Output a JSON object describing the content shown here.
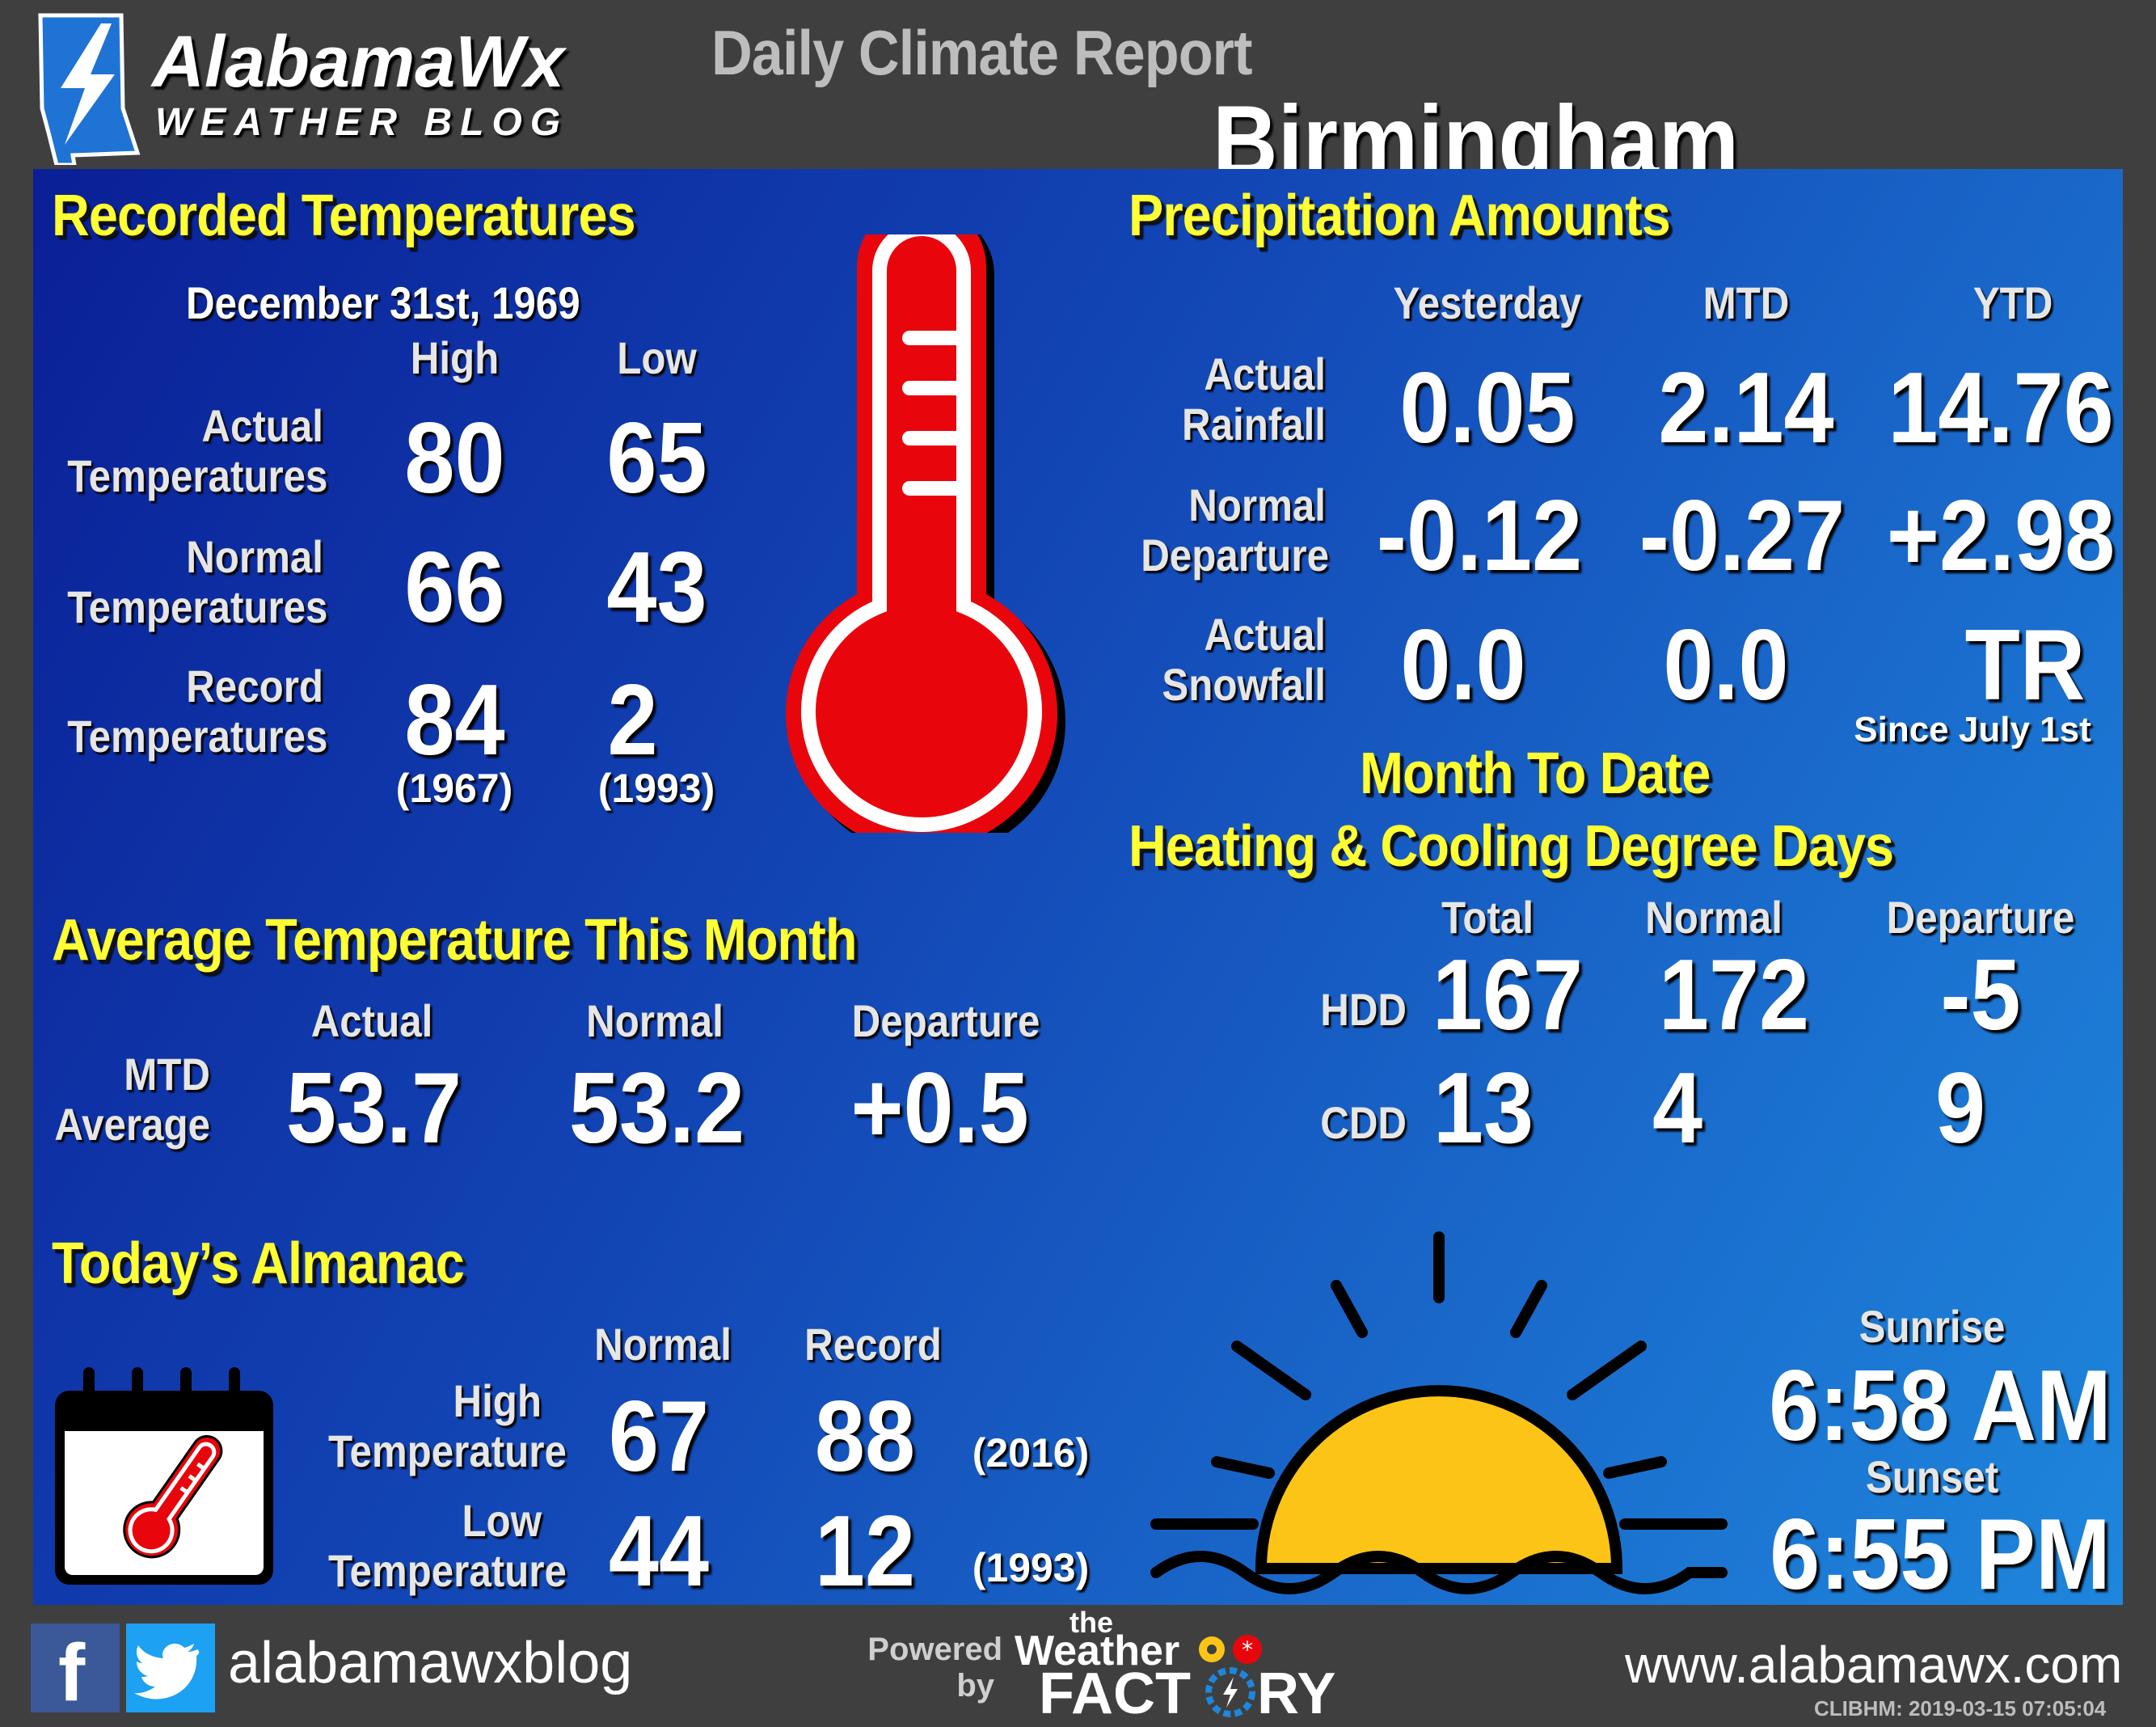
{
  "brand": {
    "name": "AlabamaWx",
    "tagline": "WEATHER BLOG"
  },
  "header": {
    "report_title": "Daily Climate Report",
    "city": "Birmingham"
  },
  "temps": {
    "heading": "Recorded Temperatures",
    "date": "December  31st, 1969",
    "col_high": "High",
    "col_low": "Low",
    "rows": [
      {
        "label1": "Actual",
        "label2": "Temperatures",
        "high": "80",
        "low": "65"
      },
      {
        "label1": "Normal",
        "label2": "Temperatures",
        "high": "66",
        "low": "43"
      },
      {
        "label1": "Record",
        "label2": "Temperatures",
        "high": "84",
        "low": "2"
      }
    ],
    "record_high_year": "(1967)",
    "record_low_year": "(1993)"
  },
  "avg": {
    "heading": "Average Temperature This Month",
    "col_actual": "Actual",
    "col_normal": "Normal",
    "col_departure": "Departure",
    "row_label1": "MTD",
    "row_label2": "Average",
    "actual": "53.7",
    "normal": "53.2",
    "departure": "+0.5"
  },
  "almanac": {
    "heading": "Today’s Almanac",
    "col_normal": "Normal",
    "col_record": "Record",
    "high_label1": "High",
    "high_label2": "Temperature",
    "low_label1": "Low",
    "low_label2": "Temperature",
    "high_normal": "67",
    "high_record": "88",
    "high_record_year": "(2016)",
    "low_normal": "44",
    "low_record": "12",
    "low_record_year": "(1993)"
  },
  "precip": {
    "heading": "Precipitation Amounts",
    "col_yesterday": "Yesterday",
    "col_mtd": "MTD",
    "col_ytd": "YTD",
    "rows": [
      {
        "label1": "Actual",
        "label2": "Rainfall",
        "yesterday": "0.05",
        "mtd": "2.14",
        "ytd": "14.76"
      },
      {
        "label1": "Normal",
        "label2": "Departure",
        "yesterday": "-0.12",
        "mtd": "-0.27",
        "ytd": "+2.98"
      },
      {
        "label1": "Actual",
        "label2": "Snowfall",
        "yesterday": "0.0",
        "mtd": "0.0",
        "ytd": "TR"
      }
    ],
    "snow_note": "Since  July  1st"
  },
  "degree_days": {
    "heading1": "Month To Date",
    "heading2": "Heating & Cooling Degree Days",
    "col_total": "Total",
    "col_normal": "Normal",
    "col_departure": "Departure",
    "hdd": {
      "label": "HDD",
      "total": "167",
      "normal": "172",
      "departure": "-5"
    },
    "cdd": {
      "label": "CDD",
      "total": "13",
      "normal": "4",
      "departure": "9"
    }
  },
  "sun": {
    "sunrise_label": "Sunrise",
    "sunrise": "6:58 AM",
    "sunset_label": "Sunset",
    "sunset": "6:55 PM"
  },
  "footer": {
    "social_handle": "alabamawxblog",
    "powered_by1": "Powered",
    "powered_by2": "by",
    "wf_the": "the",
    "wf_weather": "Weather",
    "wf_factory1": "FACT",
    "wf_factory2": "RY",
    "website": "www.alabamawx.com",
    "stamp": "CLIBHM:  2019-03-15  07:05:04"
  },
  "colors": {
    "panel_top": "#0a1f96",
    "panel_bottom": "#1e86dc",
    "heading_yellow": "#ffff33",
    "thermo_red": "#e8060c",
    "sun_yellow": "#fcc417"
  }
}
